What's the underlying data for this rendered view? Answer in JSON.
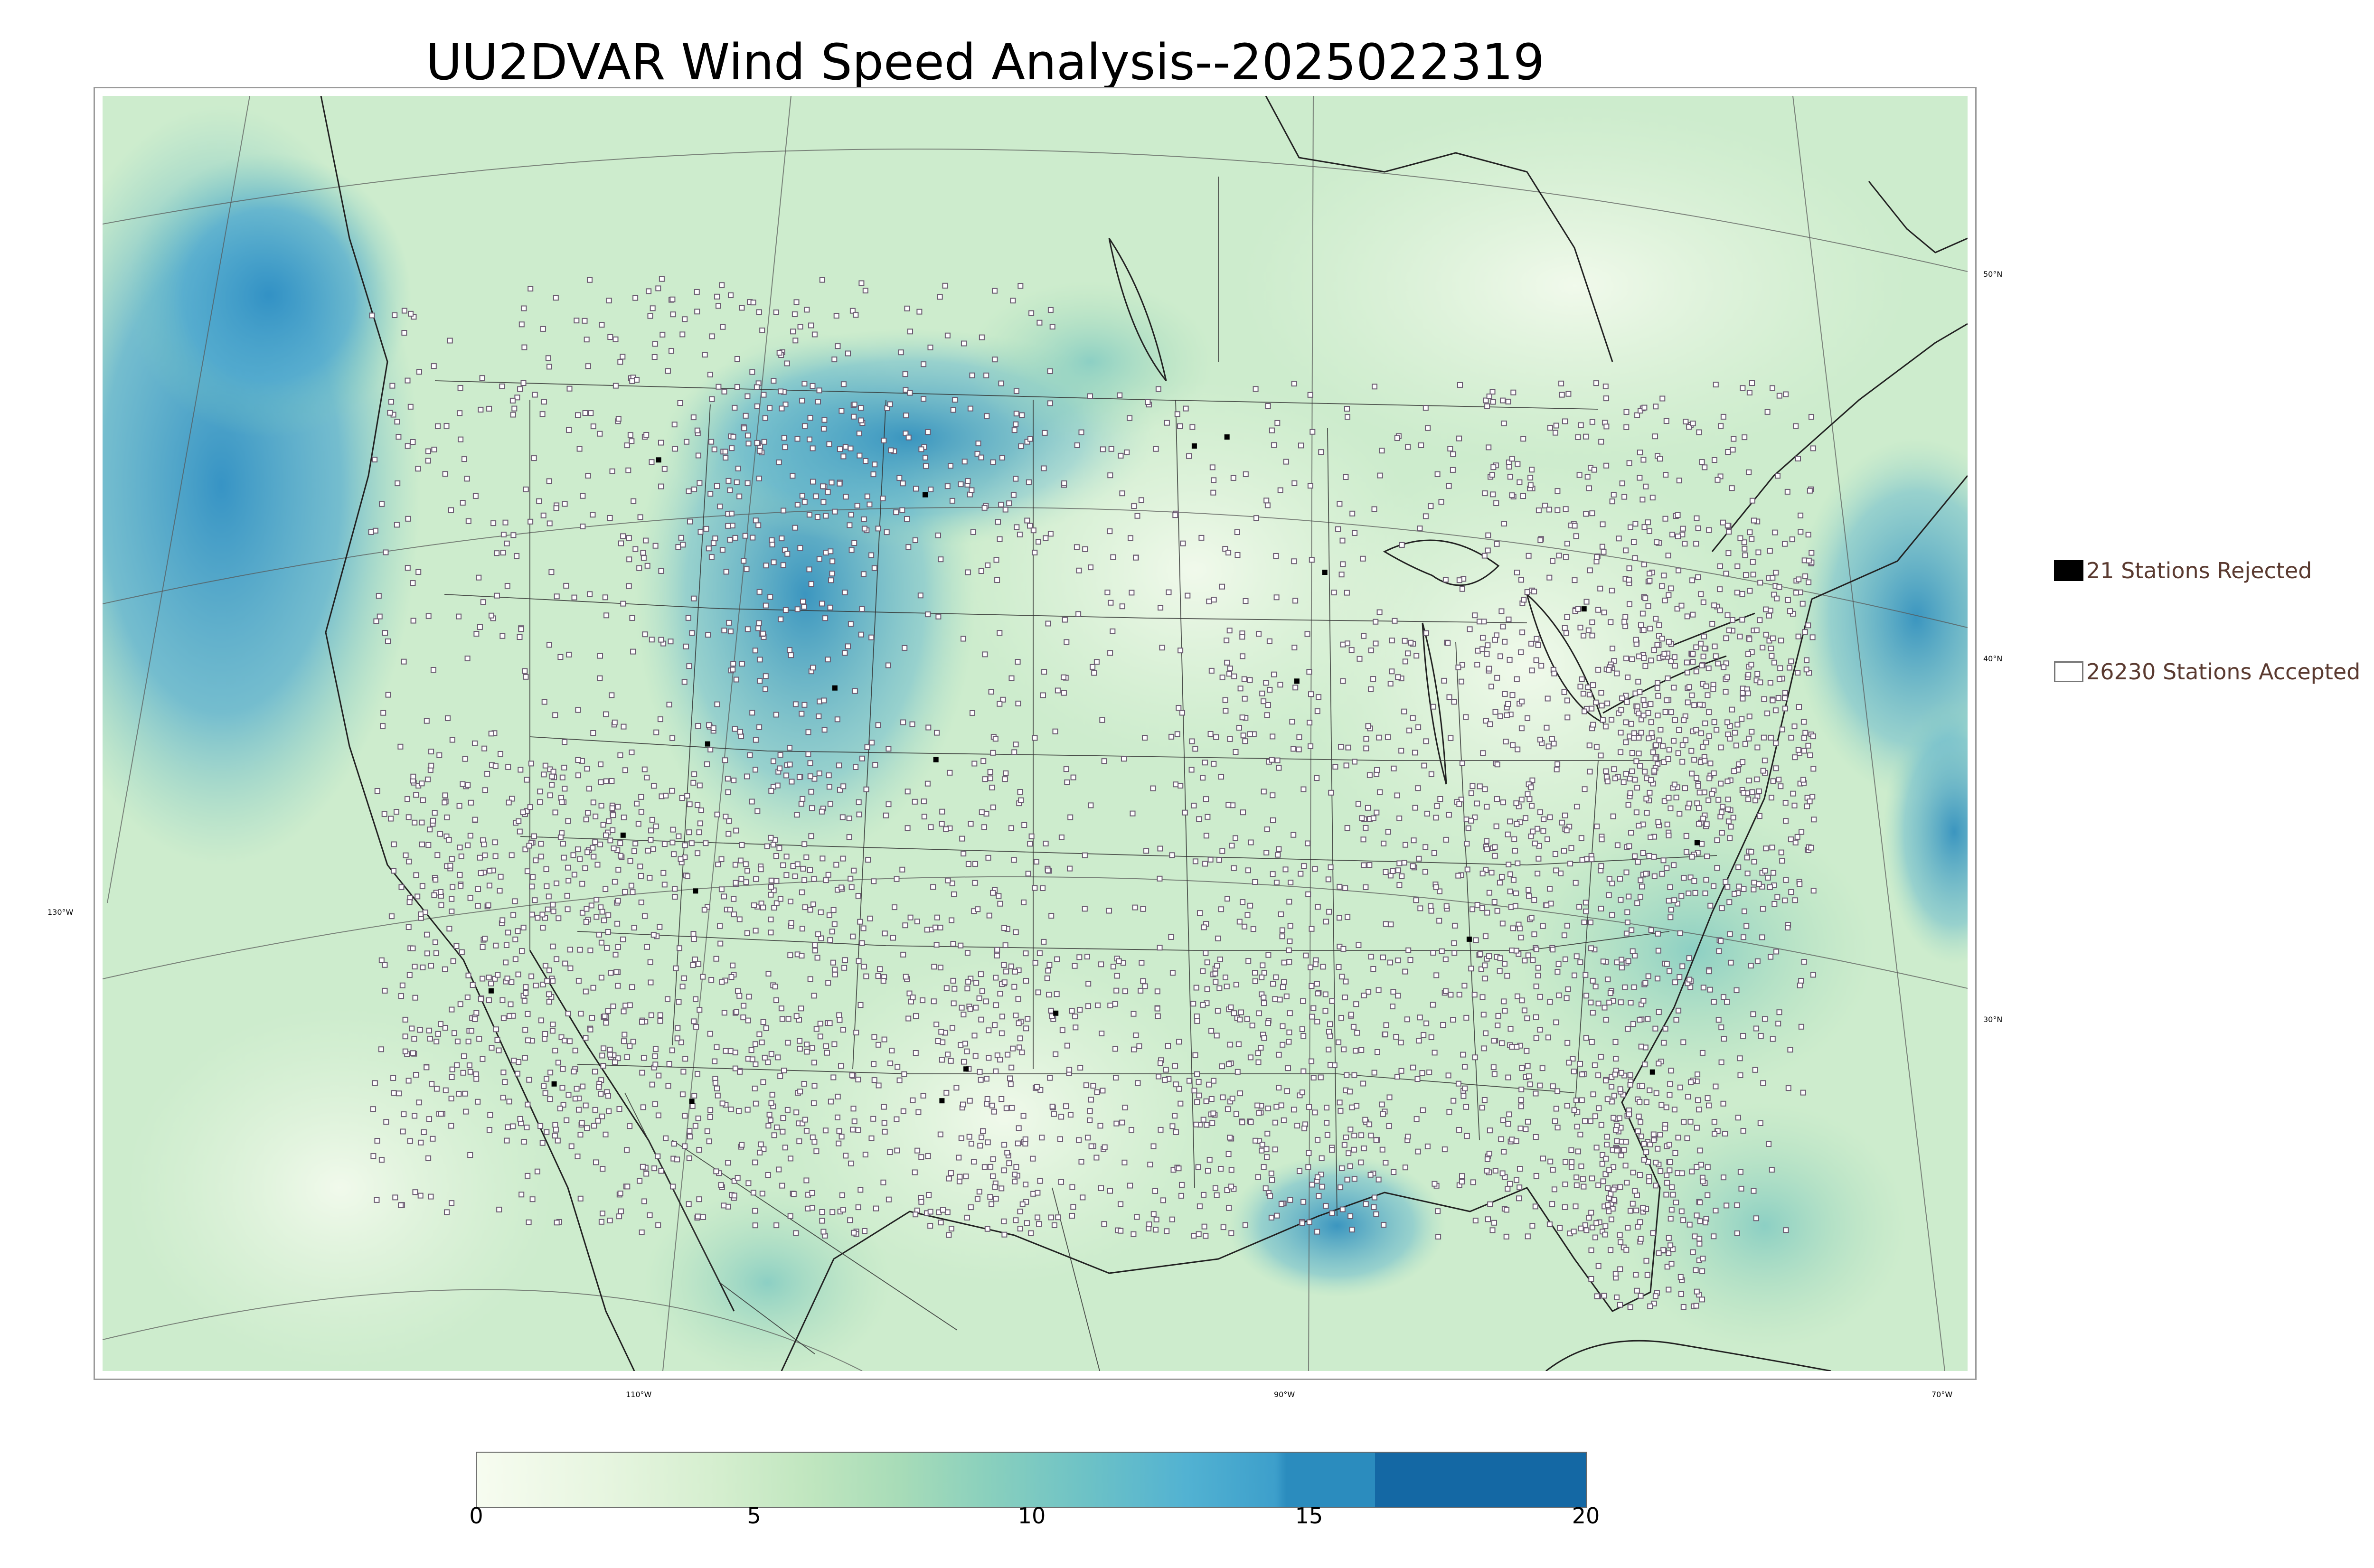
{
  "title": "UU2DVAR Wind Speed Analysis--2025022319",
  "graticule": {
    "lat_labels": [
      "50°N",
      "40°N",
      "30°N"
    ],
    "lon_labels": [
      "130°W",
      "110°W",
      "90°W",
      "70°W"
    ]
  },
  "legend": {
    "rejected_label": "21 Stations Rejected",
    "accepted_label": "26230 Stations Accepted"
  },
  "colorbar": {
    "ticks": [
      "0",
      "5",
      "10",
      "15",
      "20"
    ],
    "min": 0,
    "max": 20
  },
  "colors": {
    "land_fill": "#d8f0d2",
    "ocean_fill": "#b9e2c9",
    "high_wind": "#1468a4",
    "rejected_marker": "#000000",
    "accepted_marker": "#ffffff"
  }
}
